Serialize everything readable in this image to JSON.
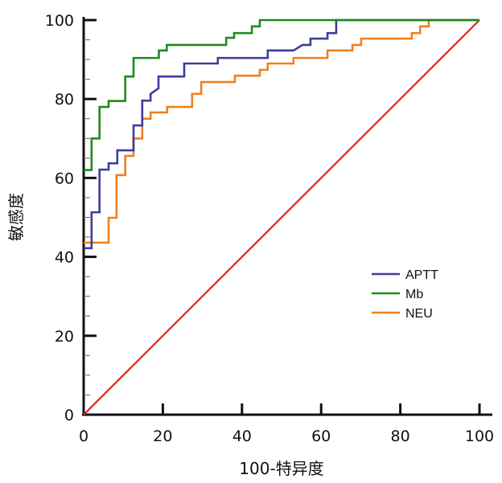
{
  "chart_data": {
    "type": "line",
    "title": "",
    "xlabel": "100-特异度",
    "ylabel": "敏感度",
    "xlim": [
      0,
      100
    ],
    "ylim": [
      0,
      100
    ],
    "xticks": [
      0,
      20,
      40,
      60,
      80,
      100
    ],
    "yticks": [
      0,
      20,
      40,
      60,
      80,
      100
    ],
    "grid": false,
    "legend_position": "center-right",
    "series": [
      {
        "name": "APTT",
        "color": "#3d3d9c",
        "points": [
          [
            0,
            42.2
          ],
          [
            2,
            42.2
          ],
          [
            2,
            51.3
          ],
          [
            4,
            51.3
          ],
          [
            4,
            62.1
          ],
          [
            6.3,
            62.1
          ],
          [
            6.3,
            63.7
          ],
          [
            8.5,
            63.7
          ],
          [
            8.5,
            67
          ],
          [
            12.6,
            67
          ],
          [
            12.6,
            73.3
          ],
          [
            14.8,
            73.3
          ],
          [
            14.8,
            79.6
          ],
          [
            16.9,
            79.6
          ],
          [
            16.9,
            81.3
          ],
          [
            18.9,
            82.7
          ],
          [
            18.9,
            85.7
          ],
          [
            25.4,
            85.7
          ],
          [
            25.4,
            89
          ],
          [
            33.9,
            89
          ],
          [
            33.9,
            90.4
          ],
          [
            46.5,
            90.4
          ],
          [
            46.5,
            92.3
          ],
          [
            53,
            92.3
          ],
          [
            55.3,
            93.7
          ],
          [
            57.3,
            93.7
          ],
          [
            57.3,
            95.3
          ],
          [
            61.6,
            95.3
          ],
          [
            61.6,
            96.7
          ],
          [
            63.8,
            96.7
          ],
          [
            63.8,
            100
          ],
          [
            100,
            100
          ]
        ]
      },
      {
        "name": "Mb",
        "color": "#1f8a1f",
        "points": [
          [
            0,
            62
          ],
          [
            2,
            62
          ],
          [
            2,
            70
          ],
          [
            4,
            70
          ],
          [
            4,
            78
          ],
          [
            6.3,
            78
          ],
          [
            6.3,
            79.5
          ],
          [
            10.5,
            79.5
          ],
          [
            10.5,
            85.7
          ],
          [
            12.6,
            85.7
          ],
          [
            12.6,
            90.4
          ],
          [
            19,
            90.4
          ],
          [
            19,
            92.3
          ],
          [
            21,
            92.3
          ],
          [
            21,
            93.7
          ],
          [
            36,
            93.7
          ],
          [
            36,
            95.5
          ],
          [
            38,
            95.5
          ],
          [
            38,
            96.7
          ],
          [
            42.5,
            96.7
          ],
          [
            42.5,
            98.4
          ],
          [
            44.5,
            98.4
          ],
          [
            44.5,
            100
          ],
          [
            100,
            100
          ]
        ]
      },
      {
        "name": "NEU",
        "color": "#f0801f",
        "points": [
          [
            0,
            43.6
          ],
          [
            6.3,
            43.6
          ],
          [
            6.3,
            49.9
          ],
          [
            8.3,
            49.9
          ],
          [
            8.3,
            60.7
          ],
          [
            10.5,
            60.7
          ],
          [
            10.5,
            65.6
          ],
          [
            12.6,
            65.6
          ],
          [
            12.6,
            70
          ],
          [
            14.8,
            70
          ],
          [
            14.8,
            75
          ],
          [
            16.9,
            75
          ],
          [
            16.9,
            76.6
          ],
          [
            21.1,
            76.6
          ],
          [
            21.1,
            78
          ],
          [
            27.4,
            78
          ],
          [
            27.4,
            81.3
          ],
          [
            29.7,
            81.3
          ],
          [
            29.7,
            84.3
          ],
          [
            38.2,
            84.3
          ],
          [
            38.2,
            85.9
          ],
          [
            44.5,
            85.9
          ],
          [
            44.5,
            87.4
          ],
          [
            46.5,
            87.4
          ],
          [
            46.5,
            89
          ],
          [
            53,
            89
          ],
          [
            53,
            90.4
          ],
          [
            61.6,
            90.4
          ],
          [
            61.6,
            92.3
          ],
          [
            67.9,
            92.3
          ],
          [
            67.9,
            93.7
          ],
          [
            70.1,
            93.7
          ],
          [
            70.1,
            95.3
          ],
          [
            82.9,
            95.3
          ],
          [
            82.9,
            96.7
          ],
          [
            85,
            96.7
          ],
          [
            85,
            98.4
          ],
          [
            87.2,
            98.4
          ],
          [
            87.2,
            100
          ],
          [
            100,
            100
          ]
        ]
      }
    ],
    "reference_line": {
      "color": "#e02424",
      "points": [
        [
          0,
          0
        ],
        [
          100,
          100
        ]
      ]
    }
  }
}
